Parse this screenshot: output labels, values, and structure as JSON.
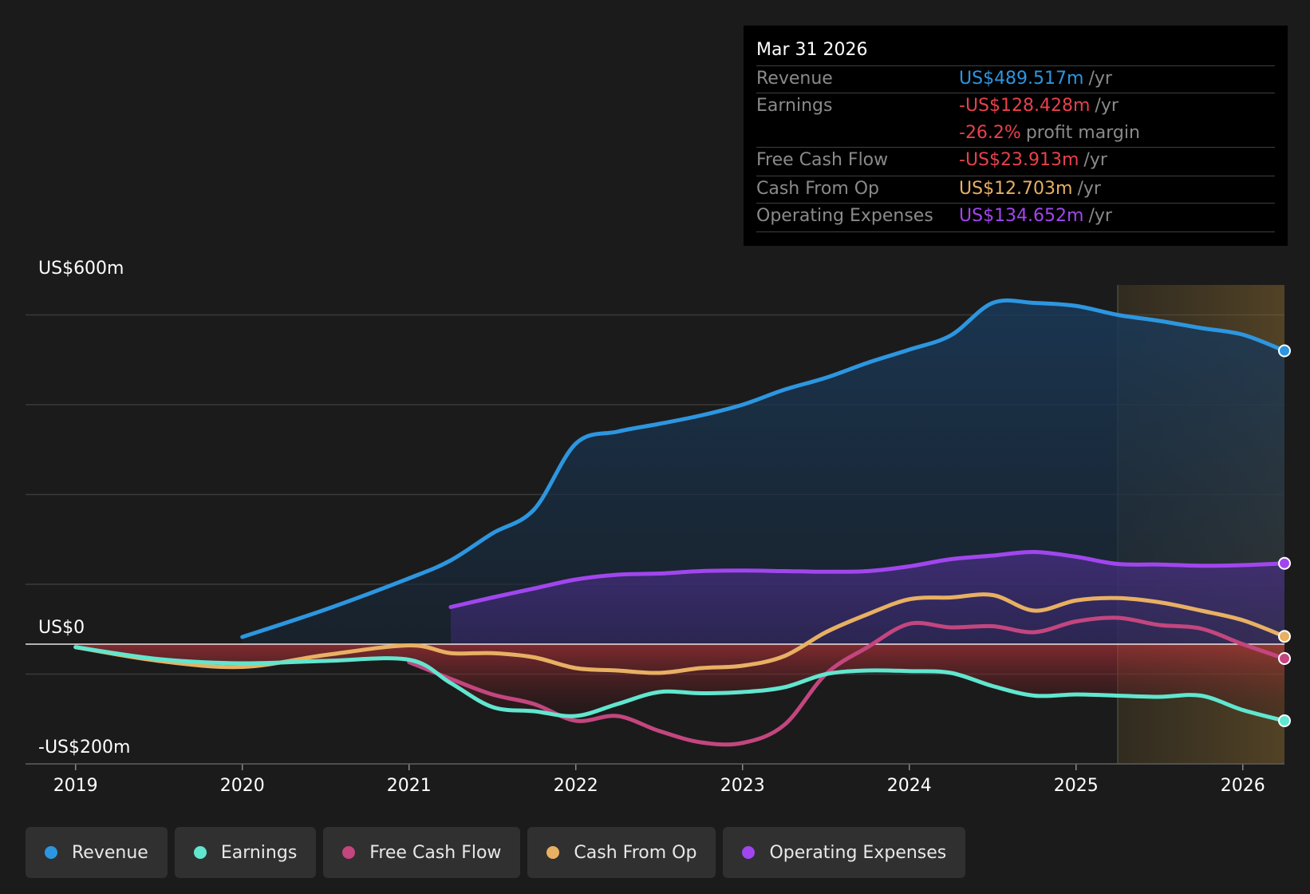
{
  "chart_data": {
    "type": "area",
    "ylim": [
      -200,
      600
    ],
    "y_ticks": [
      {
        "value": 600,
        "label": "US$600m"
      },
      {
        "value": 0,
        "label": "US$0"
      },
      {
        "value": -200,
        "label": "-US$200m"
      }
    ],
    "x_ticks": [
      {
        "value": 2019,
        "label": "2019"
      },
      {
        "value": 2020,
        "label": "2020"
      },
      {
        "value": 2021,
        "label": "2021"
      },
      {
        "value": 2022,
        "label": "2022"
      },
      {
        "value": 2023,
        "label": "2023"
      },
      {
        "value": 2024,
        "label": "2024"
      },
      {
        "value": 2025,
        "label": "2025"
      },
      {
        "value": 2026,
        "label": "2026"
      }
    ],
    "xlim": [
      2018.7,
      2026.25
    ],
    "forecast_start": 2025.25,
    "series": [
      {
        "name": "Revenue",
        "color": "#2d96e0",
        "x": [
          2020.0,
          2020.5,
          2021.0,
          2021.25,
          2021.5,
          2021.75,
          2022.0,
          2022.25,
          2022.5,
          2022.75,
          2023.0,
          2023.25,
          2023.5,
          2023.75,
          2024.0,
          2024.25,
          2024.5,
          2024.75,
          2025.0,
          2025.25,
          2025.5,
          2025.75,
          2026.0,
          2026.25
        ],
        "y": [
          12,
          58,
          110,
          140,
          185,
          225,
          335,
          355,
          368,
          382,
          400,
          425,
          445,
          470,
          492,
          516,
          570,
          570,
          565,
          550,
          540,
          528,
          517,
          490
        ]
      },
      {
        "name": "Operating Expenses",
        "color": "#a146ee",
        "x": [
          2021.25,
          2021.5,
          2021.75,
          2022.0,
          2022.25,
          2022.5,
          2022.75,
          2023.0,
          2023.25,
          2023.5,
          2023.75,
          2024.0,
          2024.25,
          2024.5,
          2024.75,
          2025.0,
          2025.25,
          2025.5,
          2025.75,
          2026.0,
          2026.25
        ],
        "y": [
          62,
          78,
          93,
          108,
          116,
          118,
          122,
          123,
          122,
          121,
          122,
          130,
          142,
          148,
          154,
          146,
          134,
          133,
          131,
          132,
          135
        ]
      },
      {
        "name": "Cash From Op",
        "color": "#e8b063",
        "x": [
          2019.0,
          2019.5,
          2020.0,
          2020.5,
          2021.0,
          2021.25,
          2021.5,
          2021.75,
          2022.0,
          2022.25,
          2022.5,
          2022.75,
          2023.0,
          2023.25,
          2023.5,
          2023.75,
          2024.0,
          2024.25,
          2024.5,
          2024.75,
          2025.0,
          2025.25,
          2025.5,
          2025.75,
          2026.0,
          2026.25
        ],
        "y": [
          -5,
          -28,
          -38,
          -18,
          -2,
          -15,
          -15,
          -22,
          -40,
          -44,
          -48,
          -40,
          -36,
          -20,
          20,
          50,
          75,
          78,
          82,
          56,
          73,
          77,
          70,
          56,
          40,
          13
        ]
      },
      {
        "name": "Free Cash Flow",
        "color": "#c3467f",
        "x": [
          2021.0,
          2021.25,
          2021.5,
          2021.75,
          2022.0,
          2022.25,
          2022.5,
          2022.75,
          2023.0,
          2023.25,
          2023.5,
          2023.75,
          2024.0,
          2024.25,
          2024.5,
          2024.75,
          2025.0,
          2025.25,
          2025.5,
          2025.75,
          2026.0,
          2026.25
        ],
        "y": [
          -30,
          -58,
          -84,
          -100,
          -128,
          -120,
          -145,
          -164,
          -165,
          -135,
          -50,
          -5,
          34,
          28,
          30,
          20,
          38,
          44,
          32,
          26,
          0,
          -24
        ]
      },
      {
        "name": "Earnings",
        "color": "#61e6cf",
        "x": [
          2019.0,
          2019.5,
          2020.0,
          2020.5,
          2021.0,
          2021.25,
          2021.5,
          2021.75,
          2022.0,
          2022.25,
          2022.5,
          2022.75,
          2023.0,
          2023.25,
          2023.5,
          2023.75,
          2024.0,
          2024.25,
          2024.5,
          2024.75,
          2025.0,
          2025.25,
          2025.5,
          2025.75,
          2026.0,
          2026.25
        ],
        "y": [
          -5,
          -25,
          -32,
          -28,
          -26,
          -65,
          -105,
          -112,
          -120,
          -100,
          -80,
          -82,
          -80,
          -72,
          -50,
          -44,
          -45,
          -48,
          -70,
          -86,
          -84,
          -86,
          -88,
          -86,
          -110,
          -128
        ]
      }
    ]
  },
  "tooltip": {
    "date": "Mar 31 2026",
    "rows": [
      {
        "label": "Revenue",
        "value": "US$489.517m",
        "unit": "/yr",
        "color": "#2d96e0"
      },
      {
        "label": "Earnings",
        "value": "-US$128.428m",
        "unit": "/yr",
        "color": "#e8414b"
      },
      {
        "label": "",
        "value": "-26.2%",
        "unit": "profit margin",
        "color": "#e8414b"
      },
      {
        "label": "Free Cash Flow",
        "value": "-US$23.913m",
        "unit": "/yr",
        "color": "#e8414b"
      },
      {
        "label": "Cash From Op",
        "value": "US$12.703m",
        "unit": "/yr",
        "color": "#e8b063"
      },
      {
        "label": "Operating Expenses",
        "value": "US$134.652m",
        "unit": "/yr",
        "color": "#a146ee"
      }
    ]
  },
  "legend": [
    {
      "label": "Revenue",
      "color": "#2d96e0"
    },
    {
      "label": "Earnings",
      "color": "#61e6cf"
    },
    {
      "label": "Free Cash Flow",
      "color": "#c3467f"
    },
    {
      "label": "Cash From Op",
      "color": "#e8b063"
    },
    {
      "label": "Operating Expenses",
      "color": "#a146ee"
    }
  ]
}
